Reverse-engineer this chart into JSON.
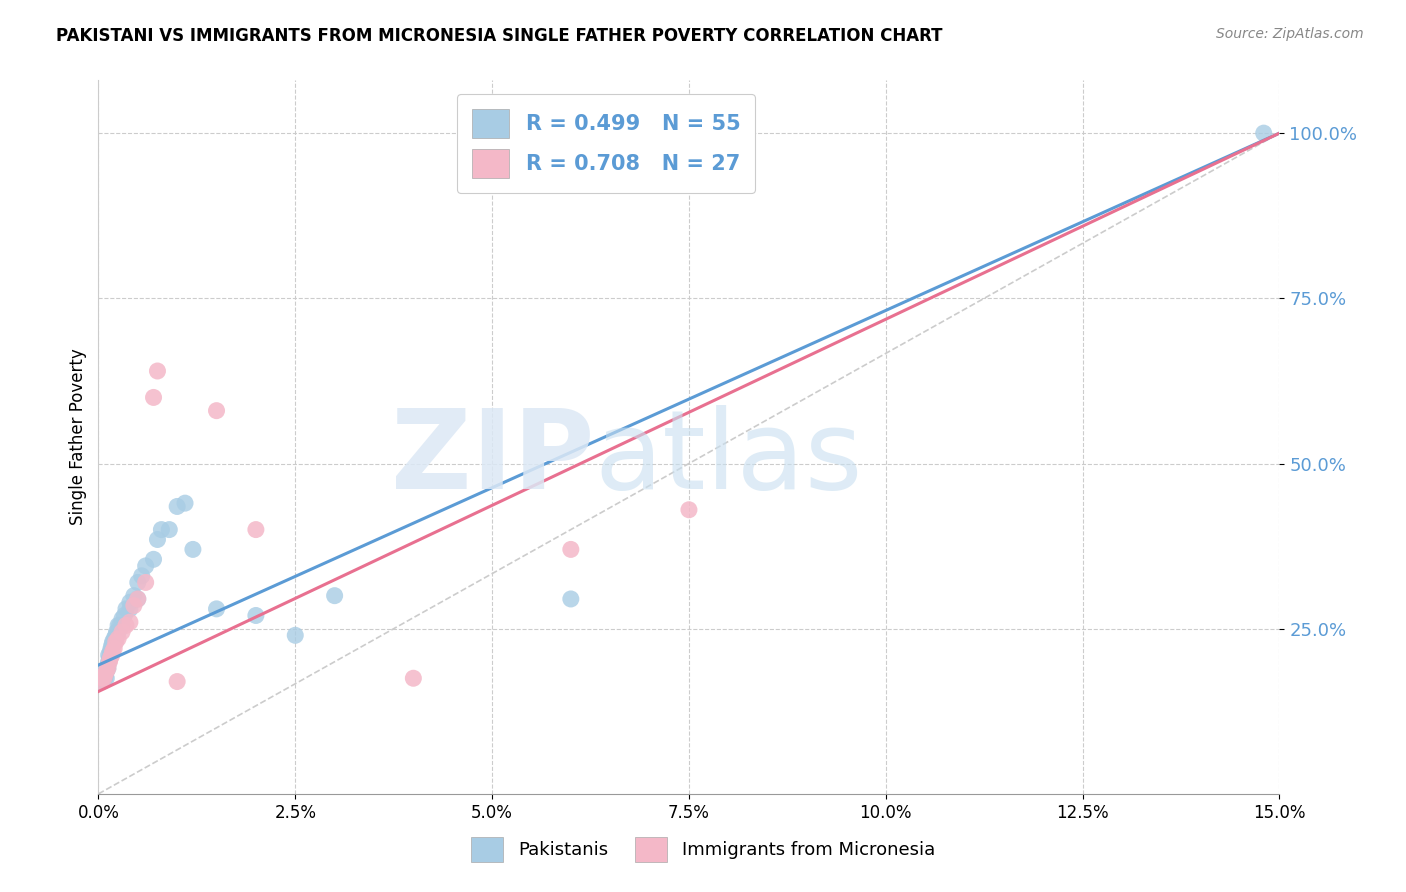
{
  "title": "PAKISTANI VS IMMIGRANTS FROM MICRONESIA SINGLE FATHER POVERTY CORRELATION CHART",
  "source": "Source: ZipAtlas.com",
  "ylabel": "Single Father Poverty",
  "legend_blue": "R = 0.499   N = 55",
  "legend_pink": "R = 0.708   N = 27",
  "legend_label_blue": "Pakistanis",
  "legend_label_pink": "Immigrants from Micronesia",
  "watermark_zip": "ZIP",
  "watermark_atlas": "atlas",
  "blue_scatter_color": "#a8cce4",
  "pink_scatter_color": "#f4b8c8",
  "blue_line_color": "#5b9bd5",
  "pink_line_color": "#e87090",
  "diag_color": "#cccccc",
  "blue_text_color": "#5b9bd5",
  "xlim": [
    0.0,
    0.15
  ],
  "ylim": [
    0.0,
    1.08
  ],
  "xticks": [
    0.0,
    0.025,
    0.05,
    0.075,
    0.1,
    0.125,
    0.15
  ],
  "yticks": [
    0.25,
    0.5,
    0.75,
    1.0
  ],
  "pak_x": [
    0.0003,
    0.0003,
    0.0004,
    0.0005,
    0.0005,
    0.0006,
    0.0007,
    0.0007,
    0.0008,
    0.0008,
    0.0009,
    0.001,
    0.001,
    0.0012,
    0.0012,
    0.0013,
    0.0013,
    0.0014,
    0.0015,
    0.0015,
    0.0016,
    0.0017,
    0.0018,
    0.002,
    0.002,
    0.0022,
    0.0022,
    0.0023,
    0.0025,
    0.0025,
    0.0027,
    0.003,
    0.003,
    0.0033,
    0.0035,
    0.004,
    0.004,
    0.0045,
    0.005,
    0.005,
    0.0055,
    0.006,
    0.007,
    0.0075,
    0.008,
    0.009,
    0.01,
    0.011,
    0.012,
    0.015,
    0.02,
    0.025,
    0.03,
    0.06,
    0.148
  ],
  "pak_y": [
    0.17,
    0.175,
    0.18,
    0.17,
    0.175,
    0.18,
    0.175,
    0.18,
    0.175,
    0.18,
    0.18,
    0.175,
    0.185,
    0.19,
    0.195,
    0.2,
    0.21,
    0.205,
    0.21,
    0.215,
    0.22,
    0.225,
    0.23,
    0.23,
    0.235,
    0.235,
    0.24,
    0.245,
    0.245,
    0.255,
    0.255,
    0.255,
    0.265,
    0.27,
    0.28,
    0.28,
    0.29,
    0.3,
    0.295,
    0.32,
    0.33,
    0.345,
    0.355,
    0.385,
    0.4,
    0.4,
    0.435,
    0.44,
    0.37,
    0.28,
    0.27,
    0.24,
    0.3,
    0.295,
    1.0
  ],
  "mic_x": [
    0.0003,
    0.0005,
    0.0007,
    0.0008,
    0.001,
    0.0012,
    0.0014,
    0.0015,
    0.0017,
    0.0018,
    0.002,
    0.0022,
    0.0025,
    0.003,
    0.0035,
    0.004,
    0.0045,
    0.005,
    0.006,
    0.007,
    0.0075,
    0.01,
    0.015,
    0.02,
    0.04,
    0.06,
    0.075
  ],
  "mic_y": [
    0.17,
    0.175,
    0.175,
    0.18,
    0.185,
    0.19,
    0.2,
    0.205,
    0.21,
    0.215,
    0.22,
    0.23,
    0.235,
    0.245,
    0.255,
    0.26,
    0.285,
    0.295,
    0.32,
    0.6,
    0.64,
    0.17,
    0.58,
    0.4,
    0.175,
    0.37,
    0.43
  ],
  "blue_line_x0": 0.0,
  "blue_line_y0": 0.195,
  "blue_line_x1": 0.15,
  "blue_line_y1": 1.0,
  "pink_line_x0": 0.0,
  "pink_line_y0": 0.155,
  "pink_line_x1": 0.15,
  "pink_line_y1": 1.0
}
